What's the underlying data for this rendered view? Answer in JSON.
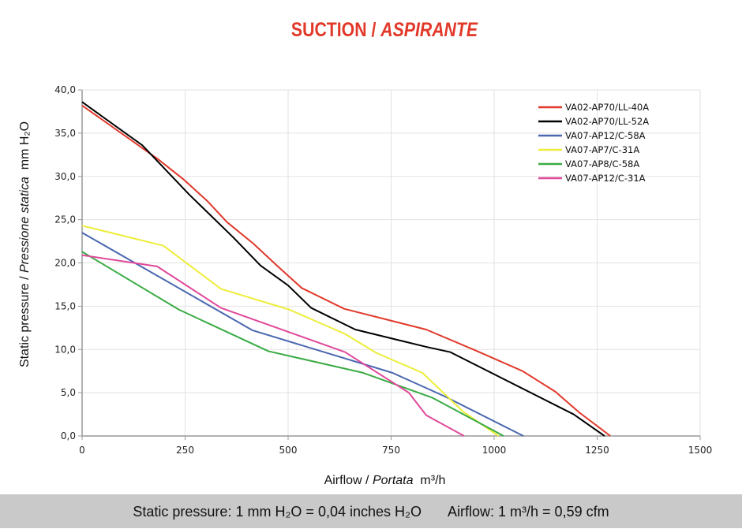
{
  "chart_data": {
    "type": "line",
    "title": "SUCTION",
    "title_italic": "ASPIRANTE",
    "title_sep": " / ",
    "xlabel": "Airflow",
    "xlabel_italic": "Portata",
    "xlabel_unit_html": "m³/h",
    "ylabel": "Static pressure",
    "ylabel_italic": "Pressione statica",
    "ylabel_unit": "mm H₂O",
    "xlim": [
      0,
      1500
    ],
    "ylim": [
      0,
      40
    ],
    "xticks": [
      0,
      250,
      500,
      750,
      1000,
      1250,
      1500
    ],
    "xtick_labels": [
      "0",
      "250",
      "500",
      "750",
      "1000",
      "1250",
      "1500"
    ],
    "yticks": [
      0,
      5,
      10,
      15,
      20,
      25,
      30,
      35,
      40
    ],
    "ytick_labels": [
      "0,0",
      "5,0",
      "10,0",
      "15,0",
      "20,0",
      "25,0",
      "30,0",
      "35,0",
      "40,0"
    ],
    "grid": true,
    "legend_position": "top-right",
    "series": [
      {
        "name": "VA02-AP70/LL-40A",
        "color": "#e0392b",
        "points": [
          [
            0,
            38.2
          ],
          [
            184,
            32.0
          ],
          [
            245,
            29.7
          ],
          [
            303,
            27.2
          ],
          [
            352,
            24.7
          ],
          [
            414,
            22.3
          ],
          [
            475,
            19.6
          ],
          [
            533,
            17.1
          ],
          [
            636,
            14.7
          ],
          [
            835,
            12.3
          ],
          [
            954,
            9.9
          ],
          [
            1069,
            7.5
          ],
          [
            1149,
            5.1
          ],
          [
            1207,
            2.7
          ],
          [
            1282,
            0
          ]
        ]
      },
      {
        "name": "VA02-AP70/LL-52A",
        "color": "#000000",
        "points": [
          [
            0,
            38.6
          ],
          [
            146,
            33.6
          ],
          [
            260,
            27.9
          ],
          [
            368,
            22.9
          ],
          [
            433,
            19.7
          ],
          [
            500,
            17.4
          ],
          [
            556,
            14.8
          ],
          [
            663,
            12.3
          ],
          [
            835,
            10.3
          ],
          [
            893,
            9.7
          ],
          [
            1193,
            2.5
          ],
          [
            1268,
            0
          ]
        ]
      },
      {
        "name": "VA07-AP12/C-58A",
        "color": "#4a67b0",
        "points": [
          [
            0,
            23.5
          ],
          [
            414,
            12.2
          ],
          [
            753,
            7.3
          ],
          [
            879,
            4.6
          ],
          [
            1071,
            0
          ]
        ]
      },
      {
        "name": "VA07-AP7/C-31A",
        "color": "#eded3a",
        "points": [
          [
            0,
            24.3
          ],
          [
            197,
            22.0
          ],
          [
            337,
            17.0
          ],
          [
            503,
            14.6
          ],
          [
            638,
            11.8
          ],
          [
            714,
            9.6
          ],
          [
            826,
            7.3
          ],
          [
            925,
            2.8
          ],
          [
            1011,
            0
          ]
        ]
      },
      {
        "name": "VA07-AP8/C-58A",
        "color": "#3aab45",
        "points": [
          [
            0,
            21.3
          ],
          [
            235,
            14.6
          ],
          [
            452,
            9.8
          ],
          [
            682,
            7.3
          ],
          [
            851,
            4.4
          ],
          [
            1023,
            0
          ]
        ]
      },
      {
        "name": "VA07-AP12/C-31A",
        "color": "#e0489a",
        "points": [
          [
            0,
            20.9
          ],
          [
            182,
            19.6
          ],
          [
            337,
            14.8
          ],
          [
            638,
            9.7
          ],
          [
            793,
            5.0
          ],
          [
            835,
            2.4
          ],
          [
            927,
            0
          ]
        ]
      }
    ]
  },
  "footer": {
    "pressure_text": "Static pressure: 1 mm H₂O = 0,04 inches H₂O",
    "airflow_text": "Airflow: 1 m³/h = 0,59 cfm"
  },
  "colors": {
    "title": "#e2382a",
    "footer_bg": "#c9c9c9",
    "grid": "#e2e2e2",
    "axis": "#999999"
  }
}
